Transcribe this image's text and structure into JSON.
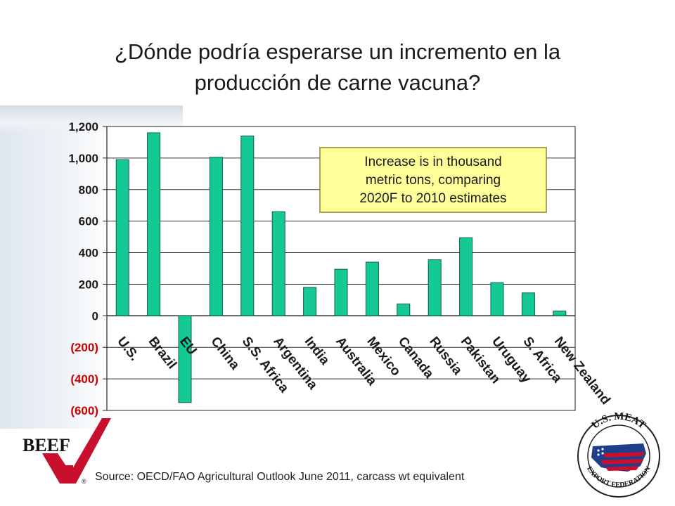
{
  "slide": {
    "title_line1": "¿Dónde podría esperarse un incremento en la",
    "title_line2": "producción de carne vacuna?",
    "source": "Source: OECD/FAO Agricultural Outlook June 2011, carcass wt equivalent",
    "logo_left_text": "BEEF",
    "logo_right_top": "U.S. MEAT",
    "logo_right_bottom": "EXPORT FEDERATION"
  },
  "chart_data": {
    "type": "bar",
    "title": "",
    "xlabel": "",
    "ylabel": "",
    "categories": [
      "U.S.",
      "Brazil",
      "EU",
      "China",
      "S.S. Africa",
      "Argentina",
      "India",
      "Australia",
      "Mexico",
      "Canada",
      "Russia",
      "Pakistan",
      "Uruguay",
      "S. Africa",
      "New Zealand"
    ],
    "values": [
      990,
      1160,
      -550,
      1005,
      1140,
      660,
      180,
      295,
      340,
      75,
      355,
      495,
      210,
      145,
      30
    ],
    "ylim": [
      -600,
      1200
    ],
    "yticks": [
      1200,
      1000,
      800,
      600,
      400,
      200,
      0,
      -200,
      -400,
      -600
    ],
    "ytick_labels": [
      "1,200",
      "1,000",
      "800",
      "600",
      "400",
      "200",
      "0",
      "(200)",
      "(400)",
      "(600)"
    ],
    "annotation": [
      "Increase is in thousand",
      "metric tons, comparing",
      "2020F to 2010 estimates"
    ],
    "grid": true,
    "colors": {
      "bar": "#14c994",
      "bar_stroke": "#0f5f48",
      "negative_tick": "#cc0000",
      "grid": "#333333",
      "annotation_fill": "#ffff99",
      "annotation_stroke": "#8a8a2a"
    }
  }
}
